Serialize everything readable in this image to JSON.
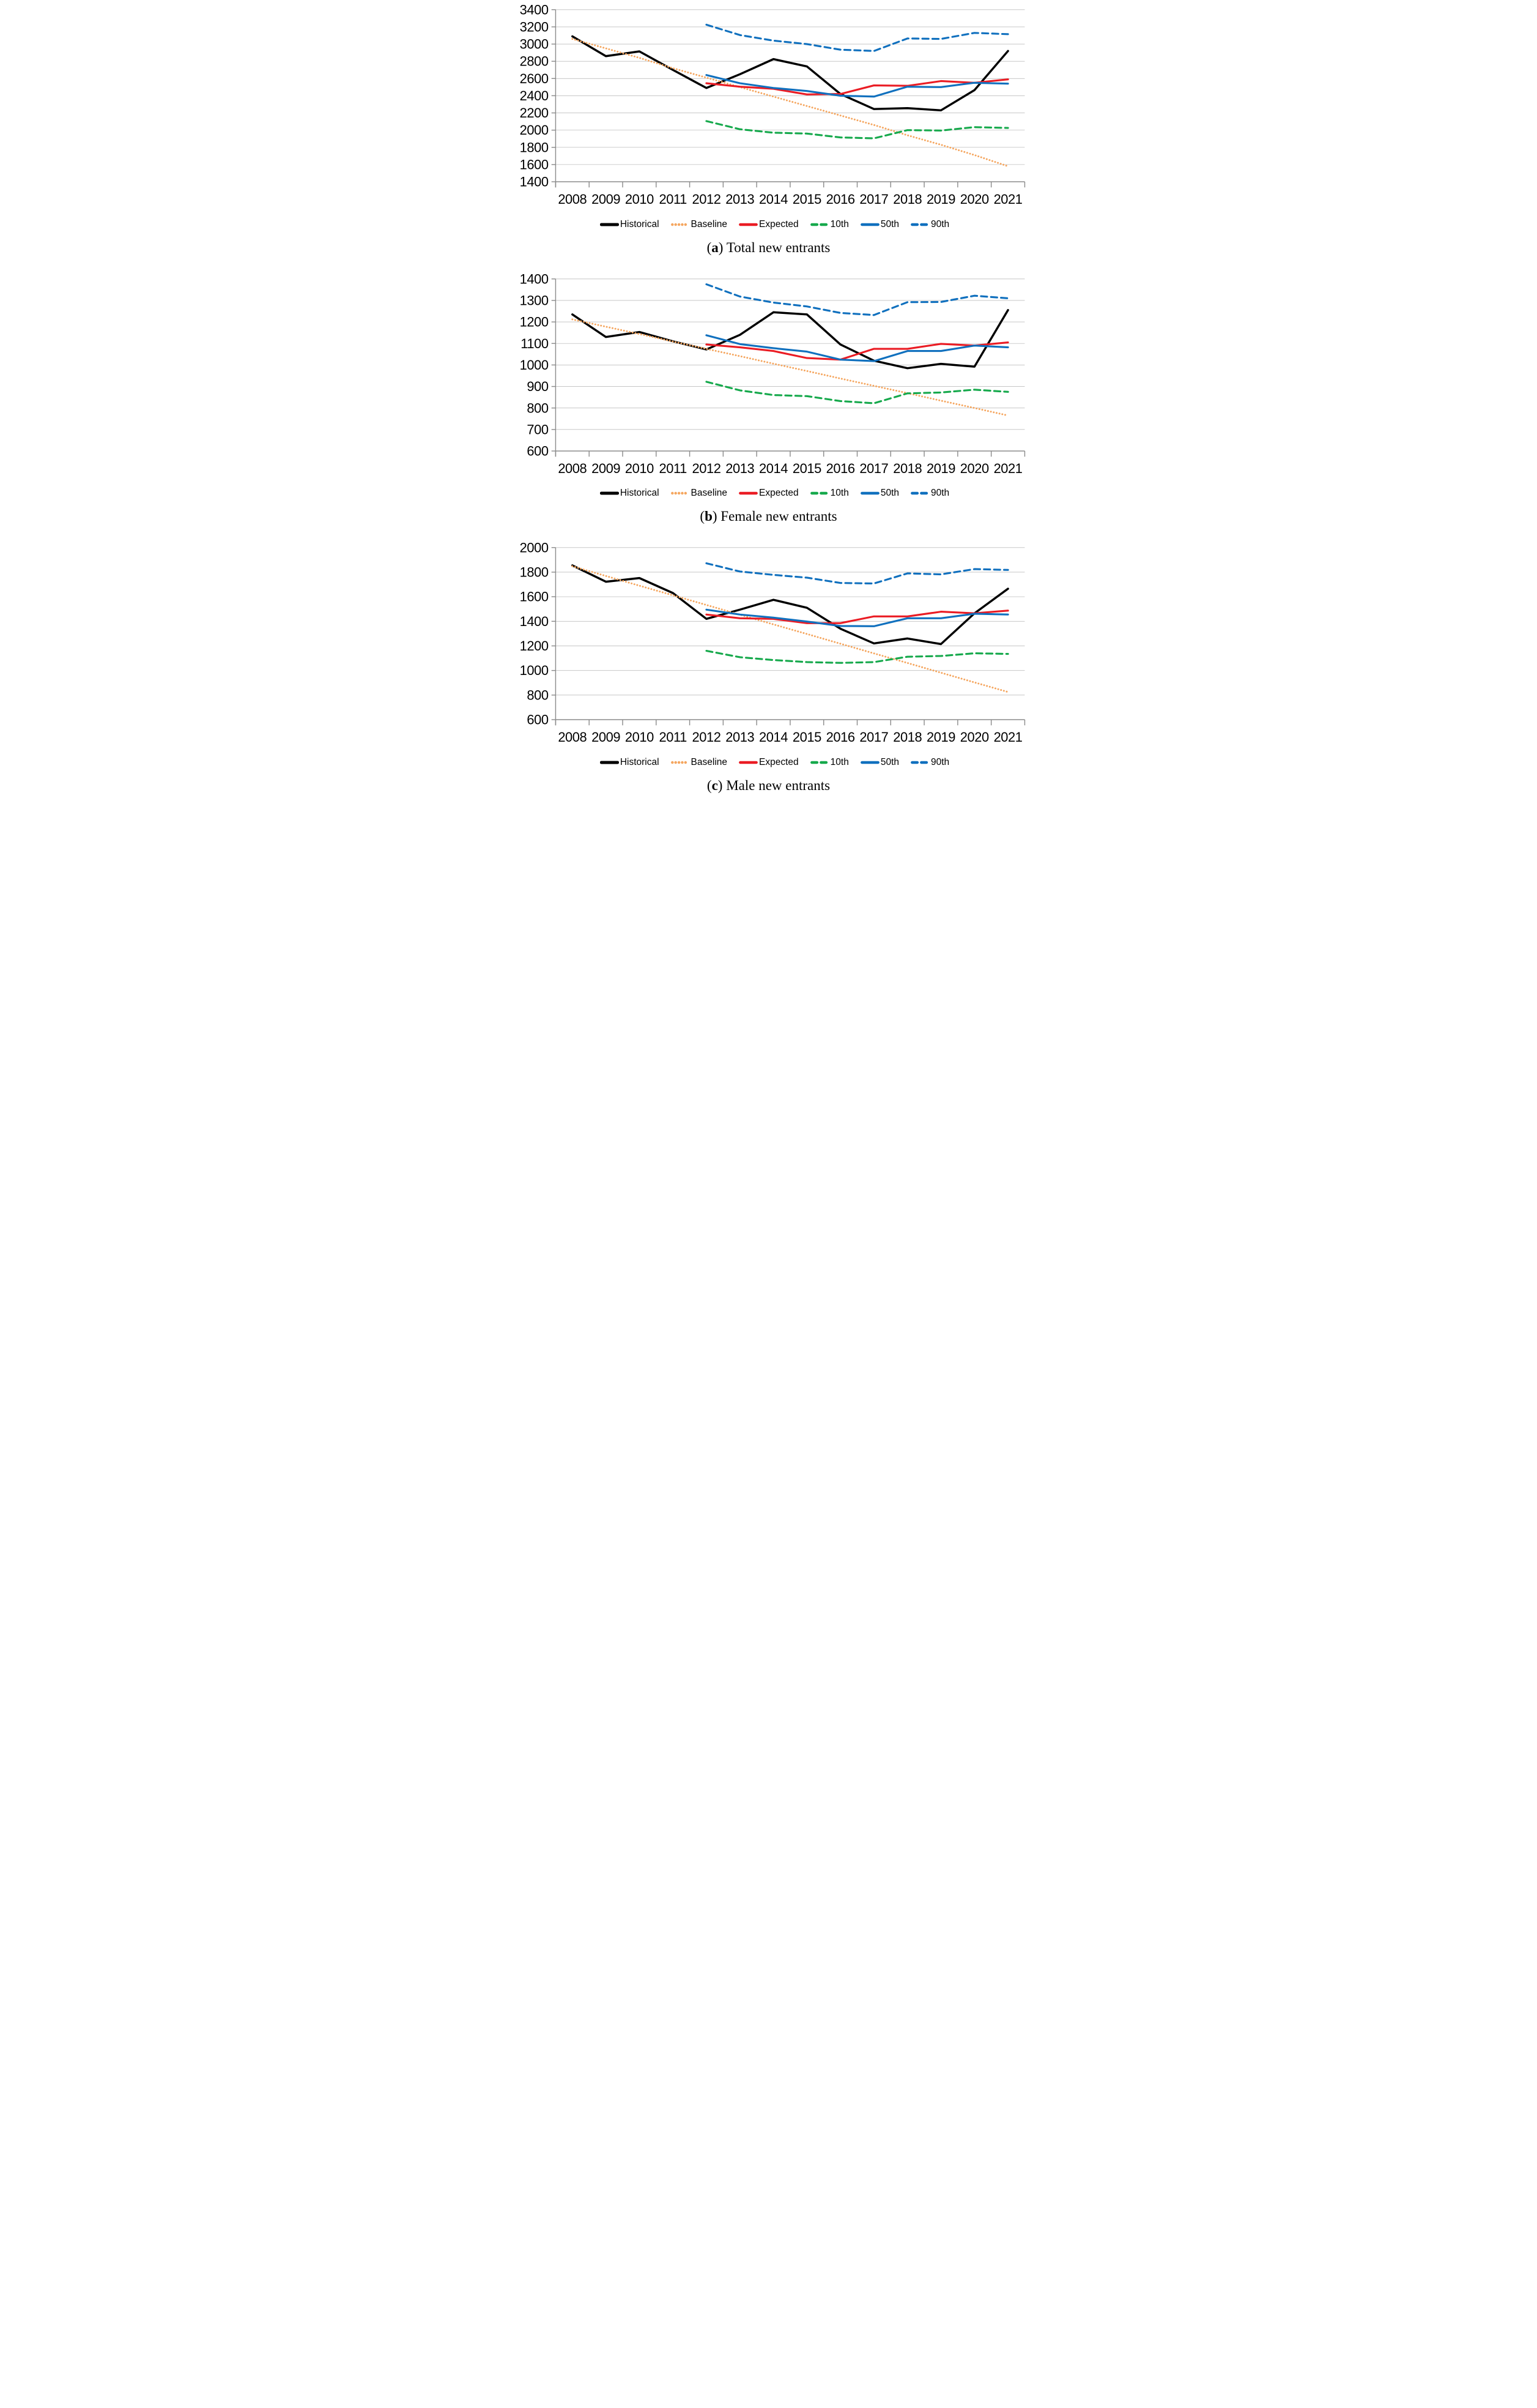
{
  "styles": {
    "background": "#FFFFFF",
    "gridline_color": "#BFBFBF",
    "axis_color": "#8C8C8C",
    "text_color": "#000000",
    "historical_color": "#000000",
    "baseline_color": "#F5A65F",
    "expected_color": "#EA1C24",
    "p10_color": "#16A94C",
    "p50_color": "#1070BE",
    "p90_color": "#1070BE"
  },
  "chart_data": [
    {
      "id": "a",
      "type": "line",
      "caption": {
        "open": "(",
        "letter": "a",
        "close": ")",
        "title": "Total new entrants"
      },
      "legend_position": "bottom",
      "grid": true,
      "categories": [
        "2008",
        "2009",
        "2010",
        "2011",
        "2012",
        "2013",
        "2014",
        "2015",
        "2016",
        "2017",
        "2018",
        "2019",
        "2020",
        "2021"
      ],
      "y_axis": {
        "min": 1400,
        "max": 3400,
        "step": 200,
        "tick_labels": [
          "3400",
          "3200",
          "3000",
          "2800",
          "2600",
          "2400",
          "2200",
          "2000",
          "1800",
          "1600",
          "1400"
        ]
      },
      "series": [
        {
          "name": "Historical",
          "color": "#000000",
          "style": "solid",
          "width": 4.1,
          "values": [
            3090,
            2860,
            2915,
            2700,
            2490,
            2650,
            2825,
            2740,
            2420,
            2245,
            2255,
            2230,
            2465,
            2920
          ]
        },
        {
          "name": "Baseline",
          "color": "#F5A65F",
          "style": "dotted",
          "width": 3.5,
          "values": [
            3060,
            2950,
            2840,
            2720,
            2610,
            2500,
            2390,
            2280,
            2170,
            2060,
            1940,
            1830,
            1710,
            1580
          ]
        },
        {
          "name": "Expected",
          "color": "#EA1C24",
          "style": "solid",
          "width": 3.7,
          "values": [
            null,
            null,
            null,
            null,
            2545,
            2505,
            2480,
            2415,
            2420,
            2520,
            2515,
            2570,
            2550,
            2590
          ]
        },
        {
          "name": "10th",
          "color": "#16A94C",
          "style": "dashed",
          "width": 3.7,
          "values": [
            null,
            null,
            null,
            null,
            2105,
            2010,
            1970,
            1960,
            1915,
            1905,
            2000,
            1995,
            2035,
            2025
          ]
        },
        {
          "name": "50th",
          "color": "#1070BE",
          "style": "solid",
          "width": 3.7,
          "values": [
            null,
            null,
            null,
            null,
            2640,
            2545,
            2490,
            2455,
            2400,
            2390,
            2505,
            2500,
            2550,
            2540
          ]
        },
        {
          "name": "90th",
          "color": "#1070BE",
          "style": "dashed",
          "width": 3.7,
          "values": [
            null,
            null,
            null,
            null,
            3225,
            3105,
            3040,
            3000,
            2935,
            2920,
            3065,
            3060,
            3130,
            3115
          ]
        }
      ]
    },
    {
      "id": "b",
      "type": "line",
      "caption": {
        "open": "(",
        "letter": "b",
        "close": ")",
        "title": "Female new entrants"
      },
      "legend_position": "bottom",
      "grid": true,
      "categories": [
        "2008",
        "2009",
        "2010",
        "2011",
        "2012",
        "2013",
        "2014",
        "2015",
        "2016",
        "2017",
        "2018",
        "2019",
        "2020",
        "2021"
      ],
      "y_axis": {
        "min": 600,
        "max": 1400,
        "step": 100,
        "tick_labels": [
          "1400",
          "1300",
          "1200",
          "1100",
          "1000",
          "900",
          "800",
          "700",
          "600"
        ]
      },
      "series": [
        {
          "name": "Historical",
          "color": "#000000",
          "style": "solid",
          "width": 4.1,
          "values": [
            1235,
            1130,
            1153,
            1110,
            1072,
            1140,
            1245,
            1235,
            1095,
            1020,
            985,
            1005,
            992,
            1255
          ]
        },
        {
          "name": "Baseline",
          "color": "#F5A65F",
          "style": "dotted",
          "width": 3.5,
          "values": [
            1212,
            1178,
            1144,
            1109,
            1075,
            1041,
            1006,
            972,
            937,
            903,
            869,
            834,
            800,
            765
          ]
        },
        {
          "name": "Expected",
          "color": "#EA1C24",
          "style": "solid",
          "width": 3.7,
          "values": [
            null,
            null,
            null,
            null,
            1095,
            1082,
            1065,
            1032,
            1025,
            1075,
            1075,
            1098,
            1090,
            1105
          ]
        },
        {
          "name": "10th",
          "color": "#16A94C",
          "style": "dashed",
          "width": 3.7,
          "values": [
            null,
            null,
            null,
            null,
            922,
            882,
            860,
            855,
            832,
            822,
            868,
            872,
            885,
            875
          ]
        },
        {
          "name": "50th",
          "color": "#1070BE",
          "style": "solid",
          "width": 3.7,
          "values": [
            null,
            null,
            null,
            null,
            1138,
            1097,
            1078,
            1062,
            1025,
            1018,
            1065,
            1065,
            1090,
            1082
          ]
        },
        {
          "name": "90th",
          "color": "#1070BE",
          "style": "dashed",
          "width": 3.7,
          "values": [
            null,
            null,
            null,
            null,
            1375,
            1318,
            1290,
            1272,
            1242,
            1232,
            1292,
            1293,
            1322,
            1310
          ]
        }
      ]
    },
    {
      "id": "c",
      "type": "line",
      "caption": {
        "open": "(",
        "letter": "c",
        "close": ")",
        "title": "Male new entrants"
      },
      "legend_position": "bottom",
      "grid": true,
      "categories": [
        "2008",
        "2009",
        "2010",
        "2011",
        "2012",
        "2013",
        "2014",
        "2015",
        "2016",
        "2017",
        "2018",
        "2019",
        "2020",
        "2021"
      ],
      "y_axis": {
        "min": 600,
        "max": 2000,
        "step": 200,
        "tick_labels": [
          "2000",
          "1800",
          "1600",
          "1400",
          "1200",
          "1000",
          "800",
          "600"
        ]
      },
      "series": [
        {
          "name": "Historical",
          "color": "#000000",
          "style": "solid",
          "width": 4.1,
          "values": [
            1855,
            1722,
            1752,
            1630,
            1420,
            1495,
            1575,
            1510,
            1340,
            1220,
            1260,
            1215,
            1465,
            1665
          ]
        },
        {
          "name": "Baseline",
          "color": "#F5A65F",
          "style": "dotted",
          "width": 3.5,
          "values": [
            1848,
            1769,
            1690,
            1612,
            1533,
            1454,
            1375,
            1297,
            1218,
            1139,
            1061,
            982,
            903,
            825
          ]
        },
        {
          "name": "Expected",
          "color": "#EA1C24",
          "style": "solid",
          "width": 3.7,
          "values": [
            null,
            null,
            null,
            null,
            1455,
            1425,
            1420,
            1385,
            1385,
            1440,
            1440,
            1478,
            1465,
            1487
          ]
        },
        {
          "name": "10th",
          "color": "#16A94C",
          "style": "dashed",
          "width": 3.7,
          "values": [
            null,
            null,
            null,
            null,
            1160,
            1108,
            1085,
            1068,
            1062,
            1068,
            1112,
            1118,
            1140,
            1135
          ]
        },
        {
          "name": "50th",
          "color": "#1070BE",
          "style": "solid",
          "width": 3.7,
          "values": [
            null,
            null,
            null,
            null,
            1495,
            1455,
            1430,
            1398,
            1362,
            1360,
            1425,
            1425,
            1462,
            1455
          ]
        },
        {
          "name": "90th",
          "color": "#1070BE",
          "style": "dashed",
          "width": 3.7,
          "values": [
            null,
            null,
            null,
            null,
            1872,
            1805,
            1778,
            1755,
            1712,
            1708,
            1790,
            1782,
            1825,
            1818
          ]
        }
      ]
    }
  ]
}
